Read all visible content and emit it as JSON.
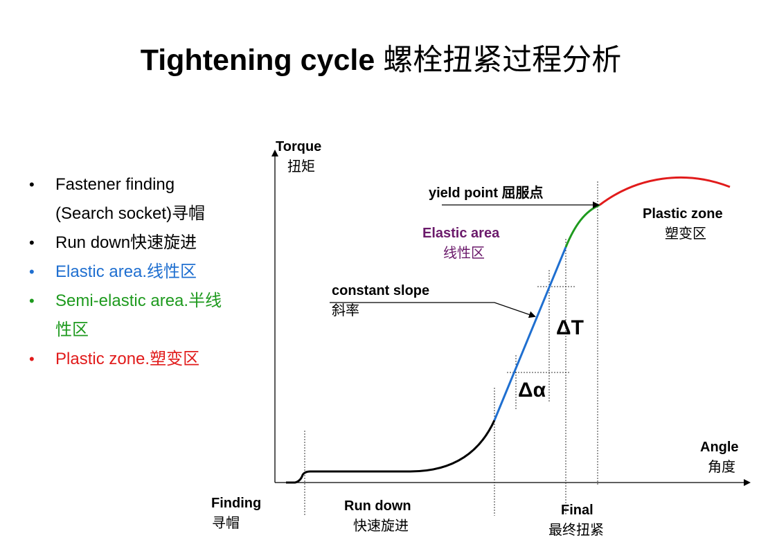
{
  "title": {
    "en": "Tightening cycle",
    "cn": "螺栓扭紧过程分析"
  },
  "bullets": [
    {
      "text": "Fastener finding\n(Search socket)寻帽",
      "color": "#000000"
    },
    {
      "text": "Run down快速旋进",
      "color": "#000000"
    },
    {
      "text": "Elastic area.线性区",
      "color": "#1f6fd0"
    },
    {
      "text": "Semi-elastic area.半线\n性区",
      "color": "#1e9a1e"
    },
    {
      "text": "Plastic zone.塑变区",
      "color": "#e11b1b"
    }
  ],
  "diagram": {
    "y_axis": {
      "en": "Torque",
      "cn": "扭矩"
    },
    "x_axis": {
      "en": "Angle",
      "cn": "角度"
    },
    "yield_point": "yield point 屈服点",
    "elastic_area": {
      "en": "Elastic area",
      "cn": "线性区"
    },
    "plastic_zone": {
      "en": "Plastic zone",
      "cn": "塑变区"
    },
    "constant_slope": {
      "en": "constant slope",
      "cn": "斜率"
    },
    "delta_t": "ΔT",
    "delta_alpha": "Δα",
    "phases": [
      {
        "en": "Finding",
        "cn": "寻帽"
      },
      {
        "en": "Run down",
        "cn": "快速旋进"
      },
      {
        "en": "Final",
        "cn": "最终扭紧"
      }
    ],
    "colors": {
      "run_down_curve": "#000000",
      "elastic_curve": "#1f6fd0",
      "semi_elastic_curve": "#1e9a1e",
      "plastic_curve": "#e11b1b",
      "elastic_label": "#6b1a6b"
    }
  }
}
